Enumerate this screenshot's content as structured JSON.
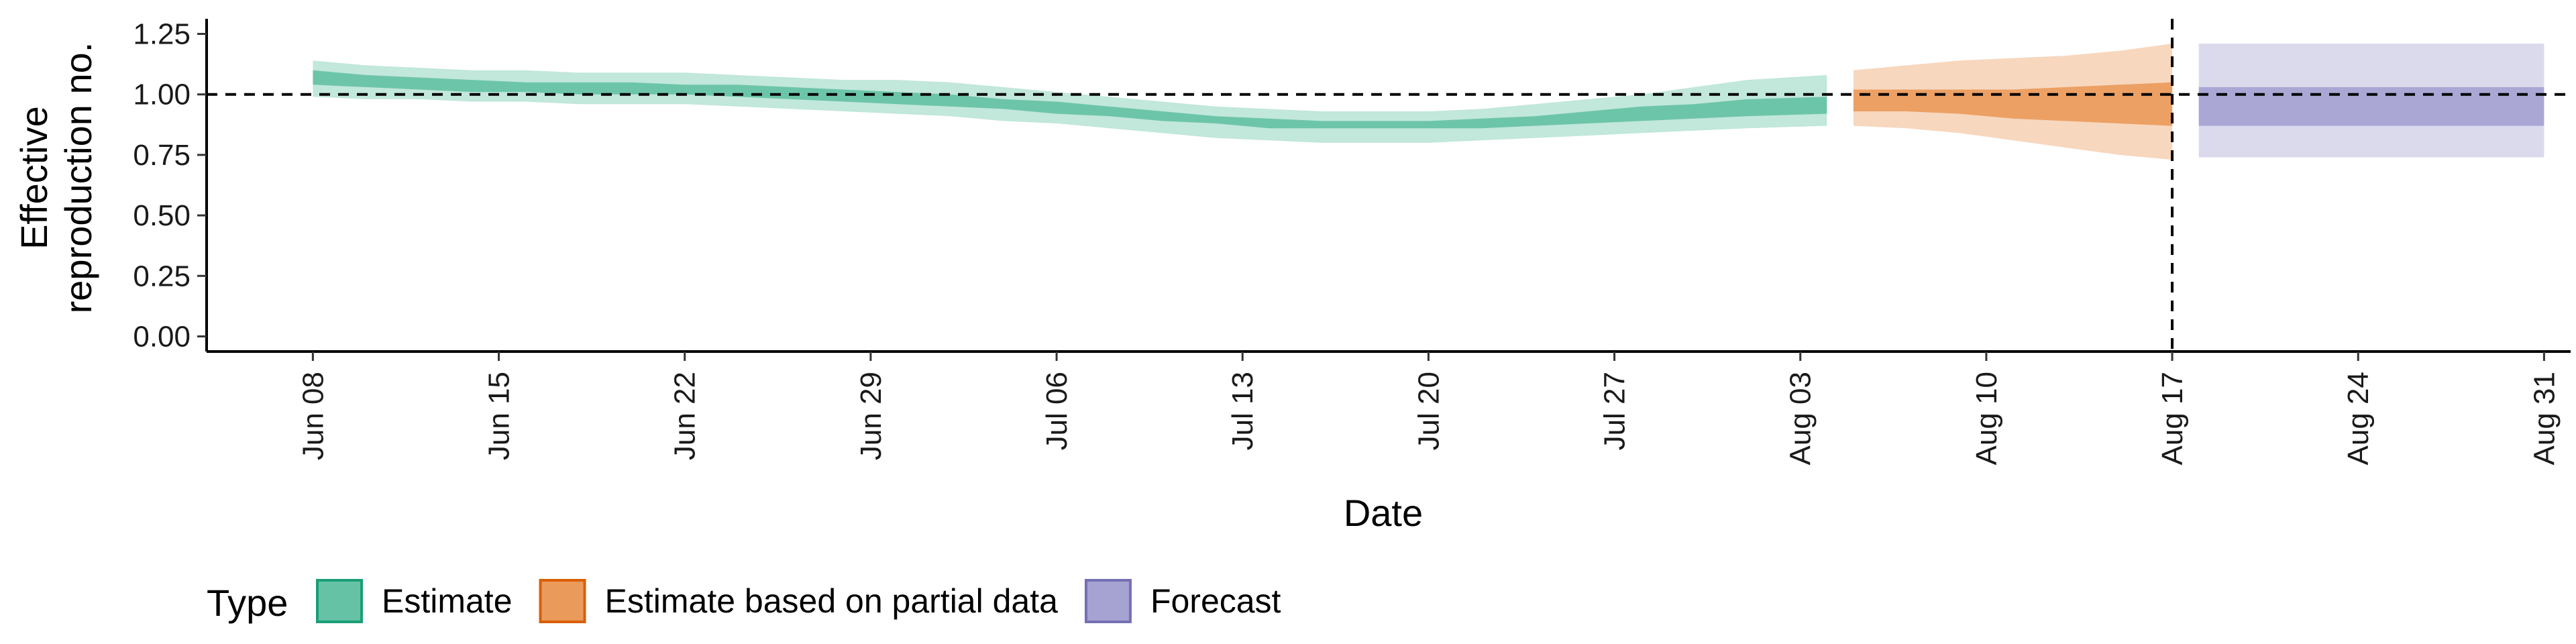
{
  "chart_data": {
    "type": "area",
    "title": "",
    "xlabel": "Date",
    "ylabel_lines": [
      "Effective",
      "reproduction no."
    ],
    "ylim": [
      0,
      1.25
    ],
    "xlim": [
      "2020-06-04",
      "2020-09-01"
    ],
    "y_ticks": [
      0.0,
      0.25,
      0.5,
      0.75,
      1.0,
      1.25
    ],
    "y_tick_labels": [
      "0.00",
      "0.25",
      "0.50",
      "0.75",
      "1.00",
      "1.25"
    ],
    "x_ticks": [
      "2020-06-08",
      "2020-06-15",
      "2020-06-22",
      "2020-06-29",
      "2020-07-06",
      "2020-07-13",
      "2020-07-20",
      "2020-07-27",
      "2020-08-03",
      "2020-08-10",
      "2020-08-17",
      "2020-08-24",
      "2020-08-31"
    ],
    "x_tick_labels": [
      "Jun 08",
      "Jun 15",
      "Jun 22",
      "Jun 29",
      "Jul 06",
      "Jul 13",
      "Jul 20",
      "Jul 27",
      "Aug 03",
      "Aug 10",
      "Aug 17",
      "Aug 24",
      "Aug 31"
    ],
    "reference_lines": {
      "y": 1.0,
      "x": "2020-08-17"
    },
    "grid": false,
    "legend": {
      "position": "bottom",
      "title": "Type",
      "entries": [
        {
          "label": "Estimate",
          "fill": "#66c2a5",
          "stroke": "#1b9e77"
        },
        {
          "label": "Estimate based on partial data",
          "fill": "#ea9b5c",
          "stroke": "#d95f02"
        },
        {
          "label": "Forecast",
          "fill": "#a6a3d2",
          "stroke": "#7570b3"
        }
      ]
    },
    "series": [
      {
        "name": "Estimate",
        "color": "#66c2a5",
        "dates": [
          "2020-06-08",
          "2020-06-10",
          "2020-06-12",
          "2020-06-14",
          "2020-06-16",
          "2020-06-18",
          "2020-06-20",
          "2020-06-22",
          "2020-06-24",
          "2020-06-26",
          "2020-06-28",
          "2020-06-30",
          "2020-07-02",
          "2020-07-04",
          "2020-07-06",
          "2020-07-08",
          "2020-07-10",
          "2020-07-12",
          "2020-07-14",
          "2020-07-16",
          "2020-07-18",
          "2020-07-20",
          "2020-07-22",
          "2020-07-24",
          "2020-07-26",
          "2020-07-28",
          "2020-07-30",
          "2020-08-01",
          "2020-08-04"
        ],
        "lower_90": [
          0.99,
          0.98,
          0.98,
          0.97,
          0.97,
          0.96,
          0.96,
          0.96,
          0.95,
          0.94,
          0.93,
          0.92,
          0.91,
          0.89,
          0.88,
          0.86,
          0.84,
          0.82,
          0.81,
          0.8,
          0.8,
          0.8,
          0.81,
          0.82,
          0.83,
          0.84,
          0.85,
          0.86,
          0.87
        ],
        "lower_50": [
          1.04,
          1.03,
          1.02,
          1.01,
          1.01,
          1.0,
          1.0,
          1.0,
          0.99,
          0.98,
          0.97,
          0.96,
          0.95,
          0.94,
          0.92,
          0.91,
          0.89,
          0.88,
          0.86,
          0.86,
          0.86,
          0.86,
          0.86,
          0.87,
          0.88,
          0.89,
          0.9,
          0.91,
          0.92
        ],
        "upper_50": [
          1.1,
          1.08,
          1.07,
          1.06,
          1.05,
          1.05,
          1.05,
          1.04,
          1.04,
          1.03,
          1.02,
          1.01,
          1.0,
          0.98,
          0.97,
          0.95,
          0.93,
          0.91,
          0.9,
          0.89,
          0.89,
          0.89,
          0.9,
          0.91,
          0.93,
          0.95,
          0.96,
          0.98,
          0.99
        ],
        "upper_90": [
          1.14,
          1.12,
          1.11,
          1.1,
          1.1,
          1.09,
          1.09,
          1.09,
          1.08,
          1.07,
          1.06,
          1.06,
          1.05,
          1.03,
          1.01,
          0.99,
          0.97,
          0.95,
          0.94,
          0.93,
          0.93,
          0.93,
          0.94,
          0.96,
          0.98,
          1.0,
          1.03,
          1.06,
          1.08
        ]
      },
      {
        "name": "Estimate based on partial data",
        "color": "#ea9b5c",
        "dates": [
          "2020-08-05",
          "2020-08-07",
          "2020-08-09",
          "2020-08-11",
          "2020-08-13",
          "2020-08-15",
          "2020-08-17"
        ],
        "lower_90": [
          0.87,
          0.86,
          0.84,
          0.81,
          0.78,
          0.75,
          0.73
        ],
        "lower_50": [
          0.93,
          0.93,
          0.92,
          0.9,
          0.89,
          0.88,
          0.87
        ],
        "upper_50": [
          1.02,
          1.02,
          1.02,
          1.02,
          1.03,
          1.04,
          1.05
        ],
        "upper_90": [
          1.1,
          1.12,
          1.14,
          1.15,
          1.16,
          1.18,
          1.21
        ]
      },
      {
        "name": "Forecast",
        "color": "#a6a3d2",
        "dates": [
          "2020-08-18",
          "2020-08-31"
        ],
        "lower_90": [
          0.74,
          0.74
        ],
        "lower_50": [
          0.87,
          0.87
        ],
        "upper_50": [
          1.03,
          1.03
        ],
        "upper_90": [
          1.21,
          1.21
        ]
      }
    ]
  }
}
